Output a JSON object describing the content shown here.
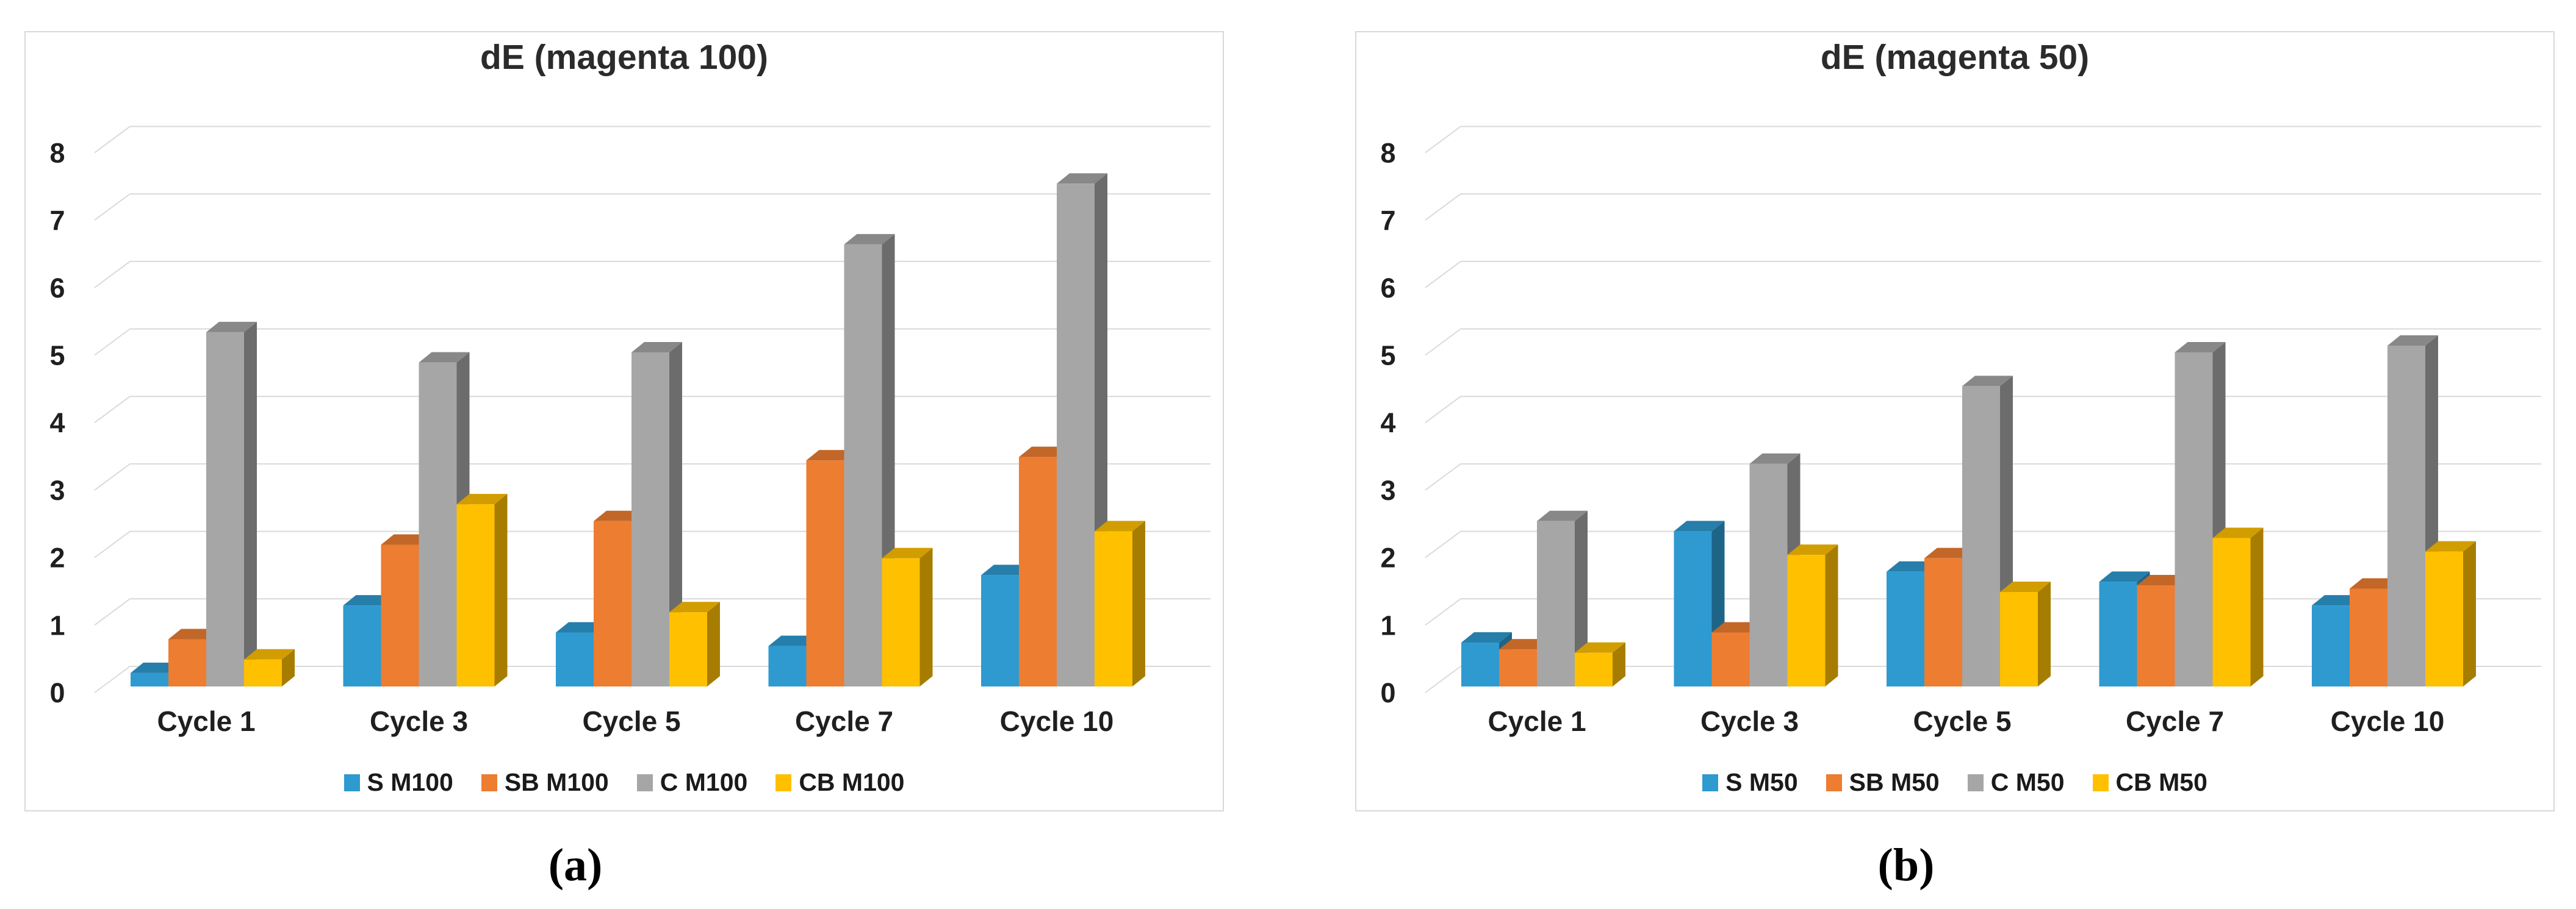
{
  "captions": {
    "a": "(a)",
    "b": "(b)"
  },
  "chart_data": [
    {
      "type": "bar",
      "style": "3d-clustered-column",
      "title": "dE (magenta 100)",
      "xlabel": "",
      "ylabel": "",
      "ylim": [
        0,
        8
      ],
      "yticks": [
        0,
        1,
        2,
        3,
        4,
        5,
        6,
        7,
        8
      ],
      "grid": true,
      "legend_position": "bottom",
      "categories": [
        "Cycle 1",
        "Cycle 3",
        "Cycle 5",
        "Cycle 7",
        "Cycle 10"
      ],
      "series": [
        {
          "name": "S M100",
          "color": "#2E9AD0",
          "values": [
            0.2,
            1.2,
            0.8,
            0.6,
            1.65
          ]
        },
        {
          "name": "SB M100",
          "color": "#ED7D31",
          "values": [
            0.7,
            2.1,
            2.45,
            3.35,
            3.4
          ]
        },
        {
          "name": "C M100",
          "color": "#A6A6A6",
          "values": [
            5.25,
            4.8,
            4.95,
            6.55,
            7.45
          ]
        },
        {
          "name": "CB M100",
          "color": "#FFC000",
          "values": [
            0.4,
            2.7,
            1.1,
            1.9,
            2.3
          ]
        }
      ]
    },
    {
      "type": "bar",
      "style": "3d-clustered-column",
      "title": "dE (magenta 50)",
      "xlabel": "",
      "ylabel": "",
      "ylim": [
        0,
        8
      ],
      "yticks": [
        0,
        1,
        2,
        3,
        4,
        5,
        6,
        7,
        8
      ],
      "grid": true,
      "legend_position": "bottom",
      "categories": [
        "Cycle 1",
        "Cycle 3",
        "Cycle 5",
        "Cycle 7",
        "Cycle 10"
      ],
      "series": [
        {
          "name": "S M50",
          "color": "#2E9AD0",
          "values": [
            0.65,
            2.3,
            1.7,
            1.55,
            1.2
          ]
        },
        {
          "name": "SB M50",
          "color": "#ED7D31",
          "values": [
            0.55,
            0.8,
            1.9,
            1.5,
            1.45
          ]
        },
        {
          "name": "C M50",
          "color": "#A6A6A6",
          "values": [
            2.45,
            3.3,
            4.45,
            4.95,
            5.05
          ]
        },
        {
          "name": "CB M50",
          "color": "#FFC000",
          "values": [
            0.5,
            1.95,
            1.4,
            2.2,
            2.0
          ]
        }
      ]
    }
  ]
}
